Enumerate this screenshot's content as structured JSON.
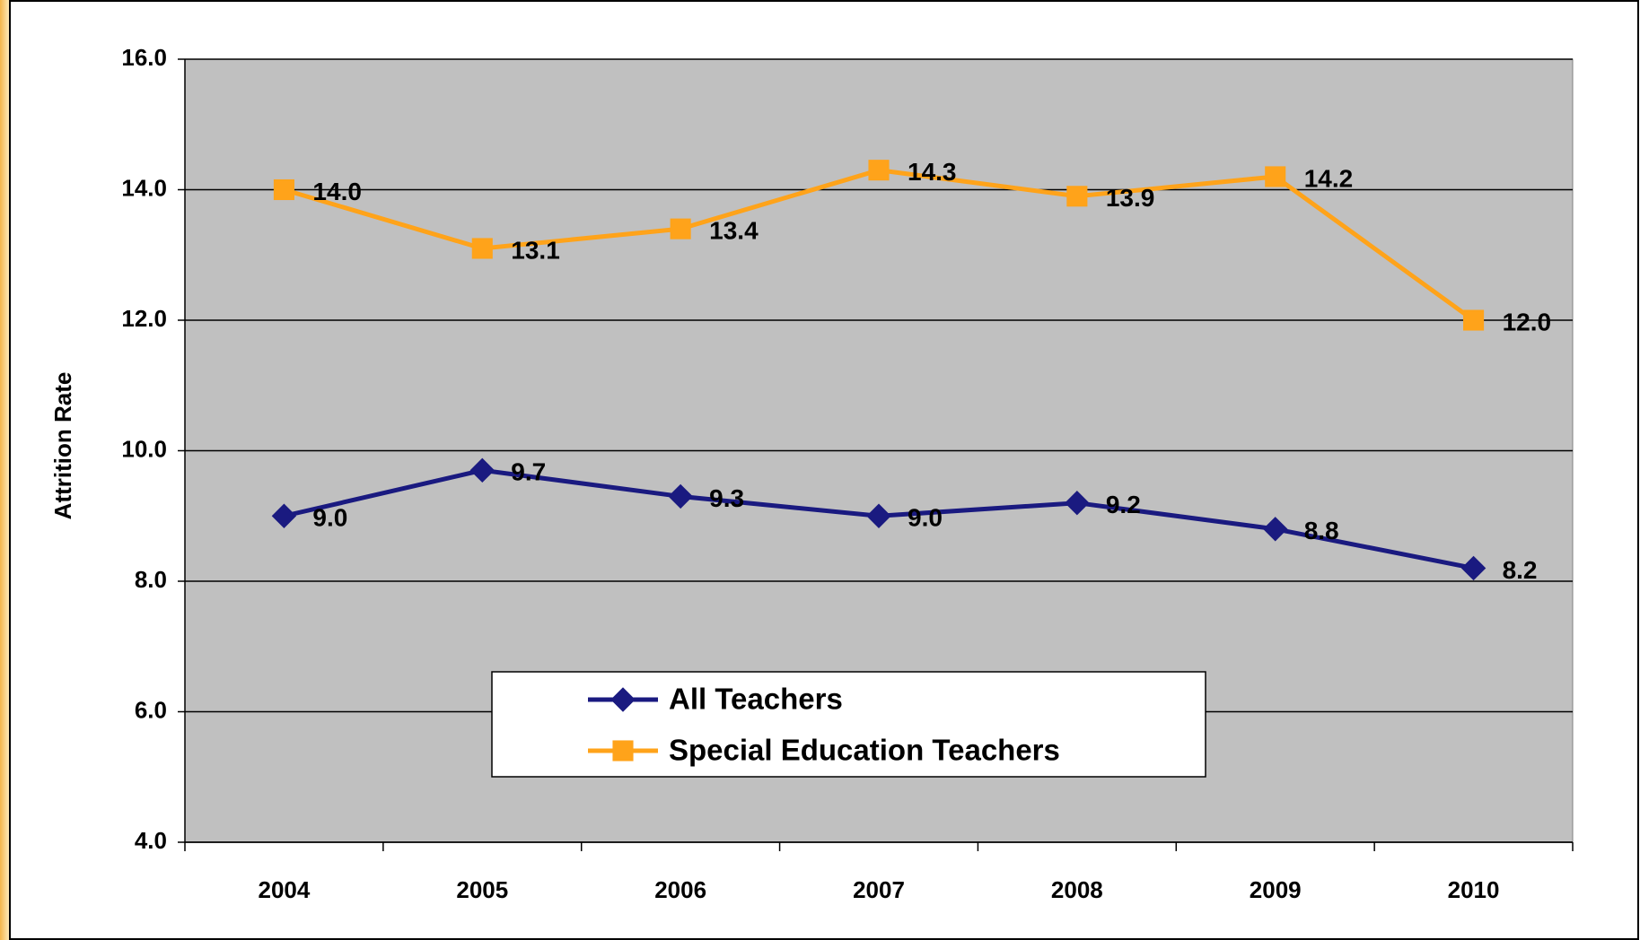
{
  "chart_data": {
    "type": "line",
    "y_label": "Attrition Rate",
    "categories": [
      "2004",
      "2005",
      "2006",
      "2007",
      "2008",
      "2009",
      "2010"
    ],
    "series": [
      {
        "name": "All Teachers",
        "color": "#1a1a80",
        "marker": "diamond",
        "values": [
          9.0,
          9.7,
          9.3,
          9.0,
          9.2,
          8.8,
          8.2
        ],
        "value_labels": [
          "9.0",
          "9.7",
          "9.3",
          "9.0",
          "9.2",
          "8.8",
          "8.2"
        ]
      },
      {
        "name": "Special Education Teachers",
        "color": "#ffa31a",
        "marker": "square",
        "values": [
          14.0,
          13.1,
          13.4,
          14.3,
          13.9,
          14.2,
          12.0
        ],
        "value_labels": [
          "14.0",
          "13.1",
          "13.4",
          "14.3",
          "13.9",
          "14.2",
          "12.0"
        ]
      }
    ],
    "ylim": [
      4,
      16
    ],
    "yticks": [
      {
        "value": 4,
        "label": "4.0"
      },
      {
        "value": 6,
        "label": "6.0"
      },
      {
        "value": 8,
        "label": "8.0"
      },
      {
        "value": 10,
        "label": "10.0"
      },
      {
        "value": 12,
        "label": "12.0"
      },
      {
        "value": 14,
        "label": "14.0"
      },
      {
        "value": 16,
        "label": "16.0"
      }
    ],
    "grid": true,
    "plot_background": "#c0c0c0"
  }
}
